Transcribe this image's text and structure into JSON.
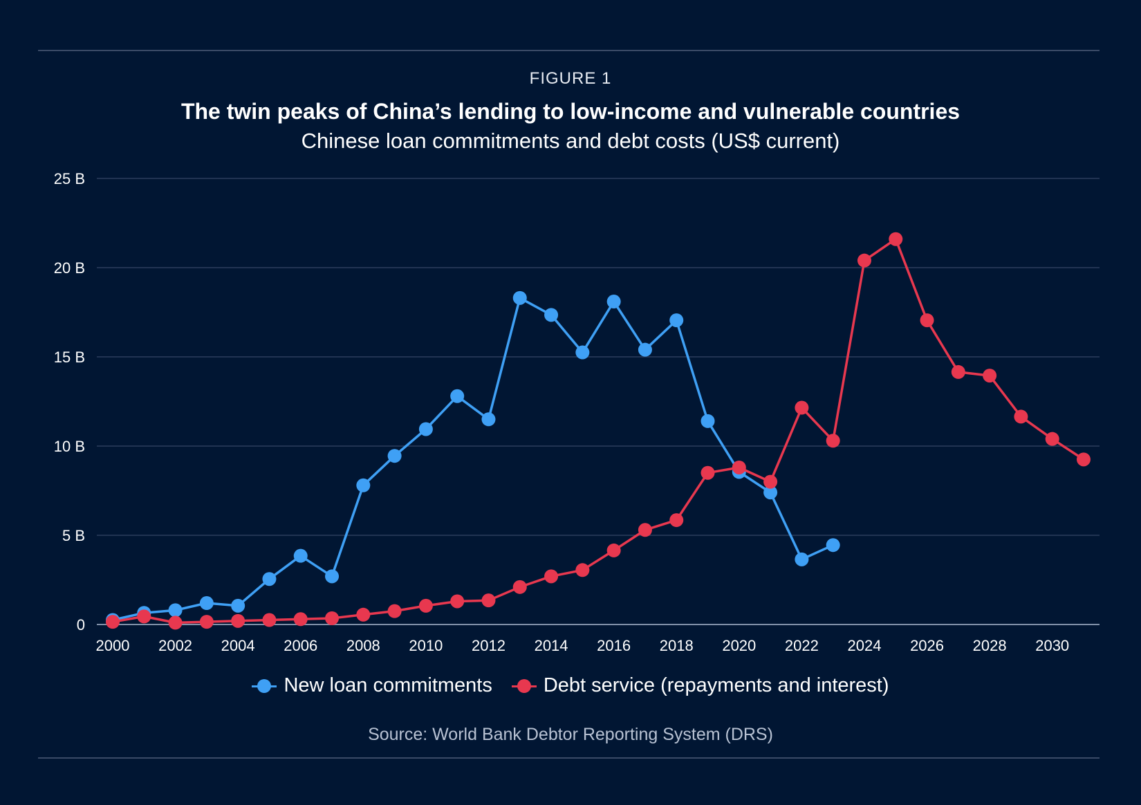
{
  "figure_label": "FIGURE 1",
  "title": "The twin peaks of China’s lending to low-income and vulnerable countries",
  "subtitle": "Chinese loan commitments and debt costs (US$ current)",
  "source": "Source: World Bank Debtor Reporting System (DRS)",
  "colors": {
    "background": "#011633",
    "grid": "#2c3d5c",
    "axis": "#8090a8",
    "loans": "#3fa0f5",
    "debt": "#e8384f"
  },
  "legend": {
    "loans_label": "New loan commitments",
    "debt_label": "Debt service (repayments and interest)"
  },
  "chart_data": {
    "type": "line",
    "title": "The twin peaks of China’s lending to low-income and vulnerable countries",
    "subtitle": "Chinese loan commitments and debt costs (US$ current)",
    "xlabel": "",
    "ylabel": "",
    "xlim": [
      2000,
      2031
    ],
    "ylim": [
      0,
      25
    ],
    "grid": true,
    "legend_position": "bottom-center",
    "x_ticks": [
      "2000",
      "2002",
      "2004",
      "2006",
      "2008",
      "2010",
      "2012",
      "2014",
      "2016",
      "2018",
      "2020",
      "2022",
      "2024",
      "2026",
      "2028",
      "2030"
    ],
    "y_ticks": [
      {
        "value": 0,
        "label": "0"
      },
      {
        "value": 5,
        "label": "5 B"
      },
      {
        "value": 10,
        "label": "10 B"
      },
      {
        "value": 15,
        "label": "15 B"
      },
      {
        "value": 20,
        "label": "20 B"
      },
      {
        "value": 25,
        "label": "25 B"
      }
    ],
    "series": [
      {
        "name": "New loan commitments",
        "color": "#3fa0f5",
        "x": [
          2000,
          2001,
          2002,
          2003,
          2004,
          2005,
          2006,
          2007,
          2008,
          2009,
          2010,
          2011,
          2012,
          2013,
          2014,
          2015,
          2016,
          2017,
          2018,
          2019,
          2020,
          2021,
          2022,
          2023
        ],
        "values": [
          0.25,
          0.65,
          0.8,
          1.2,
          1.05,
          2.55,
          3.85,
          2.7,
          7.8,
          9.45,
          10.95,
          12.8,
          11.5,
          18.3,
          17.35,
          15.25,
          18.1,
          15.4,
          17.05,
          11.4,
          8.55,
          7.4,
          3.65,
          4.45
        ]
      },
      {
        "name": "Debt service (repayments and interest)",
        "color": "#e8384f",
        "x": [
          2000,
          2001,
          2002,
          2003,
          2004,
          2005,
          2006,
          2007,
          2008,
          2009,
          2010,
          2011,
          2012,
          2013,
          2014,
          2015,
          2016,
          2017,
          2018,
          2019,
          2020,
          2021,
          2022,
          2023,
          2024,
          2025,
          2026,
          2027,
          2028,
          2029,
          2030,
          2031
        ],
        "values": [
          0.15,
          0.45,
          0.1,
          0.15,
          0.2,
          0.25,
          0.3,
          0.35,
          0.55,
          0.75,
          1.05,
          1.3,
          1.35,
          2.1,
          2.7,
          3.05,
          4.15,
          5.3,
          5.85,
          8.5,
          8.8,
          8.0,
          12.15,
          10.3,
          20.4,
          21.6,
          17.05,
          14.15,
          13.95,
          11.65,
          10.4,
          9.25
        ]
      }
    ]
  }
}
